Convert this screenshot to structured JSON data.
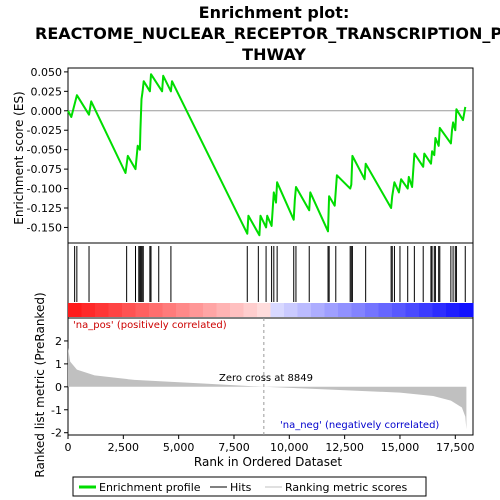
{
  "chart_data": {
    "type": "line",
    "title": "Enrichment plot:\nREACTOME_NUCLEAR_RECEPTOR_TRANSCRIPTION_PA\nTHWAY",
    "title_lines": [
      "Enrichment plot:",
      "REACTOME_NUCLEAR_RECEPTOR_TRANSCRIPTION_PA",
      "THWAY"
    ],
    "xlabel": "Rank in Ordered Dataset",
    "es_panel": {
      "ylabel": "Enrichment score (ES)",
      "ylim": [
        -0.17,
        0.055
      ],
      "yticks": [
        0.05,
        0.025,
        0.0,
        -0.025,
        -0.05,
        -0.075,
        -0.1,
        -0.125,
        -0.15
      ],
      "ytick_labels": [
        "0.050",
        "0.025",
        "0.000",
        "-0.025",
        "-0.050",
        "-0.075",
        "-0.100",
        "-0.125",
        "-0.150"
      ],
      "line_color": "#00dd00",
      "profile": [
        [
          0,
          0.0
        ],
        [
          150,
          -0.008
        ],
        [
          400,
          0.02
        ],
        [
          950,
          -0.005
        ],
        [
          1050,
          0.012
        ],
        [
          2600,
          -0.08
        ],
        [
          2700,
          -0.058
        ],
        [
          3050,
          -0.075
        ],
        [
          3150,
          -0.045
        ],
        [
          3250,
          -0.05
        ],
        [
          3270,
          -0.025
        ],
        [
          3320,
          0.015
        ],
        [
          3370,
          0.025
        ],
        [
          3420,
          0.038
        ],
        [
          3700,
          0.025
        ],
        [
          3750,
          0.047
        ],
        [
          4250,
          0.025
        ],
        [
          4300,
          0.045
        ],
        [
          4650,
          0.025
        ],
        [
          4700,
          0.038
        ],
        [
          8100,
          -0.158
        ],
        [
          8150,
          -0.135
        ],
        [
          8650,
          -0.16
        ],
        [
          8700,
          -0.135
        ],
        [
          8950,
          -0.15
        ],
        [
          9000,
          -0.135
        ],
        [
          9200,
          -0.148
        ],
        [
          9300,
          -0.105
        ],
        [
          9400,
          -0.118
        ],
        [
          9450,
          -0.092
        ],
        [
          10200,
          -0.14
        ],
        [
          10250,
          -0.115
        ],
        [
          10300,
          -0.098
        ],
        [
          10900,
          -0.128
        ],
        [
          10950,
          -0.105
        ],
        [
          11750,
          -0.155
        ],
        [
          11800,
          -0.11
        ],
        [
          12050,
          -0.122
        ],
        [
          12150,
          -0.083
        ],
        [
          12750,
          -0.1
        ],
        [
          12800,
          -0.095
        ],
        [
          12850,
          -0.058
        ],
        [
          13400,
          -0.088
        ],
        [
          13450,
          -0.068
        ],
        [
          14600,
          -0.125
        ],
        [
          14650,
          -0.11
        ],
        [
          14750,
          -0.092
        ],
        [
          14950,
          -0.105
        ],
        [
          15050,
          -0.088
        ],
        [
          15350,
          -0.1
        ],
        [
          15400,
          -0.085
        ],
        [
          15550,
          -0.098
        ],
        [
          15650,
          -0.055
        ],
        [
          16050,
          -0.072
        ],
        [
          16100,
          -0.055
        ],
        [
          16400,
          -0.068
        ],
        [
          16450,
          -0.052
        ],
        [
          16550,
          -0.057
        ],
        [
          16600,
          -0.035
        ],
        [
          16750,
          -0.045
        ],
        [
          16800,
          -0.022
        ],
        [
          17300,
          -0.042
        ],
        [
          17350,
          -0.025
        ],
        [
          17400,
          -0.015
        ],
        [
          17500,
          -0.025
        ],
        [
          17550,
          0.002
        ],
        [
          17850,
          -0.012
        ],
        [
          17950,
          0.005
        ]
      ]
    },
    "hits": [
      300,
      400,
      950,
      2650,
      3050,
      3200,
      3250,
      3300,
      3350,
      3400,
      3700,
      3750,
      4100,
      4650,
      8100,
      8600,
      8950,
      9200,
      9300,
      9450,
      10200,
      10300,
      10900,
      11750,
      11800,
      12100,
      12750,
      12800,
      12850,
      13450,
      14600,
      14650,
      14750,
      15000,
      15350,
      15650,
      16050,
      16400,
      16450,
      16550,
      16600,
      16750,
      16800,
      17300,
      17400,
      17500,
      17550,
      17950
    ],
    "ranked_panel": {
      "ylabel": "Ranked list metric (PreRanked)",
      "ylim": [
        -2.1,
        3.0
      ],
      "yticks": [
        2,
        1,
        0,
        -1,
        -2
      ],
      "ytick_labels": [
        "2",
        "1",
        "0",
        "-1",
        "-2"
      ],
      "fill_color": "#c0c0c0"
    },
    "x_range": [
      0,
      18300
    ],
    "xticks": [
      0,
      2500,
      5000,
      7500,
      10000,
      12500,
      15000,
      17500
    ],
    "xtick_labels": [
      "0",
      "2,500",
      "5,000",
      "7,500",
      "10,000",
      "12,500",
      "15,000",
      "17,500"
    ],
    "zero_cross": 8849,
    "zero_cross_label": "Zero cross at 8849",
    "pos_label": "'na_pos' (positively correlated)",
    "neg_label": "'na_neg' (negatively correlated)",
    "pos_label_color": "#cc0000",
    "neg_label_color": "#0000cc",
    "legend": [
      {
        "label": "Enrichment profile",
        "color": "#00dd00",
        "kind": "thick-line"
      },
      {
        "label": "Hits",
        "color": "#000000",
        "kind": "line"
      },
      {
        "label": "Ranking metric scores",
        "color": "#c0c0c0",
        "kind": "line"
      }
    ]
  }
}
